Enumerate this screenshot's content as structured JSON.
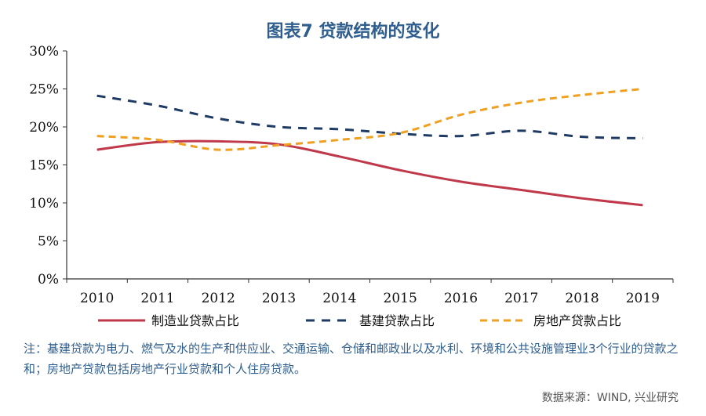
{
  "chart_data": {
    "type": "line",
    "title": "图表7  贷款结构的变化",
    "categories": [
      "2010",
      "2011",
      "2012",
      "2013",
      "2014",
      "2015",
      "2016",
      "2017",
      "2018",
      "2019"
    ],
    "ylim": [
      0,
      30
    ],
    "yticks": [
      "0%",
      "5%",
      "10%",
      "15%",
      "20%",
      "25%",
      "30%"
    ],
    "ytick_values": [
      0,
      5,
      10,
      15,
      20,
      25,
      30
    ],
    "grid": false,
    "legend_position": "bottom",
    "series": [
      {
        "name": "制造业贷款占比",
        "color": "#c0394b",
        "dash": "solid",
        "values": [
          17.0,
          18.0,
          18.1,
          17.7,
          16.1,
          14.3,
          12.8,
          11.7,
          10.6,
          9.7
        ]
      },
      {
        "name": "基建贷款占比",
        "color": "#1f3b63",
        "dash": "dash",
        "values": [
          24.1,
          22.8,
          21.1,
          20.0,
          19.7,
          19.1,
          18.8,
          19.5,
          18.7,
          18.5
        ]
      },
      {
        "name": "房地产贷款占比",
        "color": "#f0a020",
        "dash": "dash",
        "values": [
          18.8,
          18.3,
          17.0,
          17.6,
          18.3,
          19.2,
          21.6,
          23.2,
          24.2,
          25.0
        ]
      }
    ]
  },
  "note": "注：基建贷款为电力、燃气及水的生产和供应业、交通运输、仓储和邮政业以及水利、环境和公共设施管理业3个行业的贷款之和；房地产贷款包括房地产行业贷款和个人住房贷款。",
  "source": "数据来源：WIND, 兴业研究"
}
